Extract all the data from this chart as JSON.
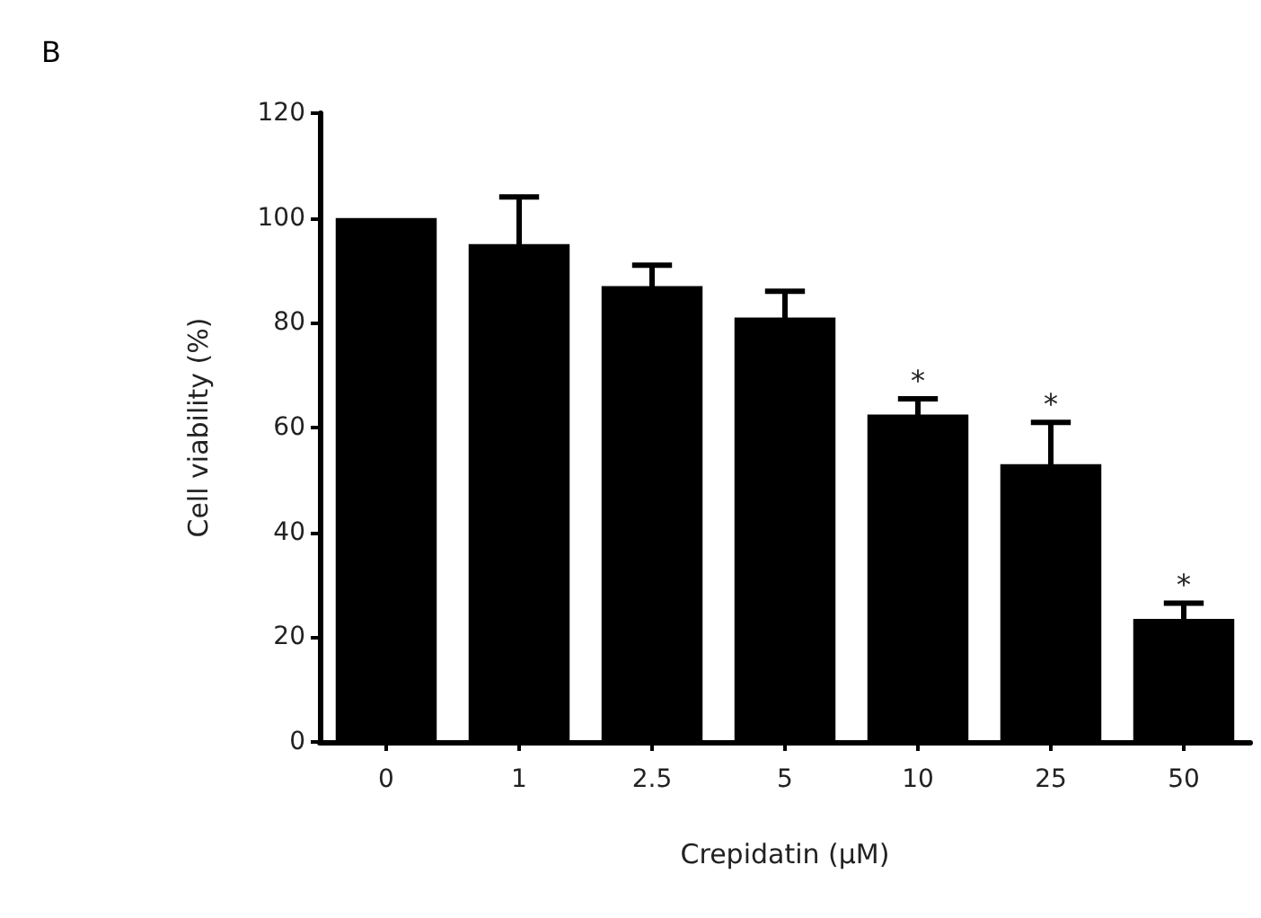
{
  "chart_data": {
    "type": "bar",
    "categories": [
      "0",
      "1",
      "2.5",
      "5",
      "10",
      "25",
      "50"
    ],
    "values": [
      100,
      95,
      87,
      81,
      62.5,
      53,
      23.5
    ],
    "errors": [
      null,
      9,
      4,
      5,
      3,
      8,
      3
    ],
    "color": "#000000",
    "xlabel": "Crepidatin (μM)",
    "ylabel": "Cell viability (%)",
    "ylim": [
      0,
      120
    ],
    "yticks": [
      0,
      20,
      40,
      60,
      80,
      100,
      120
    ],
    "grid": false,
    "annotations": [
      "B",
      {
        "text": "*",
        "x": "10",
        "y": 65.5
      },
      {
        "text": "*",
        "x": "25",
        "y": 61
      },
      {
        "text": "*",
        "x": "50",
        "y": 26.5
      }
    ]
  }
}
